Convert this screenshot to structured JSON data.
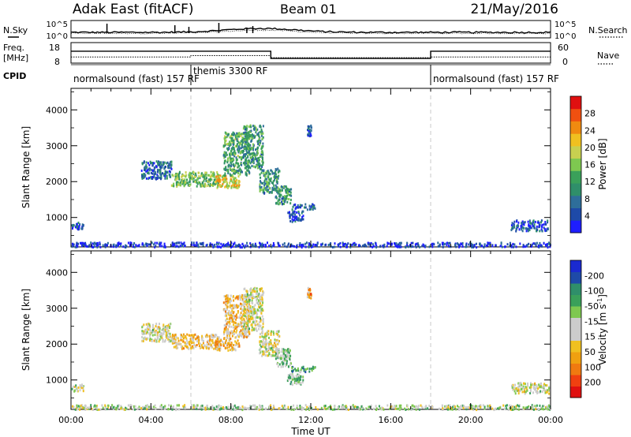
{
  "header": {
    "station": "Adak East (fitACF)",
    "beam": "Beam 01",
    "date": "21/May/2016"
  },
  "strip": {
    "nsky_label": "N.Sky",
    "nsearch_label": "N.Search",
    "freq_label": "Freq.",
    "freq_unit": "[MHz]",
    "nave_label": "Nave",
    "cpid_label": "CPID",
    "noise_ticks": [
      "10^5",
      "10^0"
    ],
    "freq_ticks": [
      "18",
      "8"
    ],
    "nave_ticks": [
      "60",
      "0"
    ]
  },
  "cpid_segments": [
    {
      "label": "normalsound (fast) 157 RF",
      "start_h": 0,
      "end_h": 6
    },
    {
      "label": "themis 3300 RF",
      "start_h": 6,
      "end_h": 18
    },
    {
      "label": "normalsound (fast) 157 RF",
      "start_h": 18,
      "end_h": 24
    }
  ],
  "chart_data": [
    {
      "type": "heatmap",
      "panel": "power",
      "ylabel": "Slant Range [km]",
      "xlabel": "Time UT",
      "x_ticks": [
        "00:00",
        "04:00",
        "08:00",
        "12:00",
        "16:00",
        "20:00",
        "00:00"
      ],
      "xlim_hours": [
        0,
        24
      ],
      "y_ticks": [
        1000,
        2000,
        3000,
        4000
      ],
      "ylim": [
        180,
        4600
      ],
      "colorbar": {
        "label": "Power [dB]",
        "ticks": [
          4,
          8,
          12,
          16,
          20,
          24,
          28
        ],
        "range": [
          0,
          30
        ],
        "colors": [
          "#1e1eff",
          "#1e4aa8",
          "#2e6e9a",
          "#2f8f6a",
          "#3aa05a",
          "#7ec850",
          "#c8d050",
          "#f0c020",
          "#f08a10",
          "#f05010",
          "#e01010"
        ]
      },
      "regions": [
        {
          "t_start": 0.0,
          "t_end": 0.6,
          "r_low": 700,
          "r_high": 900,
          "level": 0.15
        },
        {
          "t_start": 3.5,
          "t_end": 5.0,
          "r_low": 2100,
          "r_high": 2600,
          "level": 0.2
        },
        {
          "t_start": 5.0,
          "t_end": 7.4,
          "r_low": 1900,
          "r_high": 2300,
          "level": 0.45
        },
        {
          "t_start": 7.2,
          "t_end": 8.4,
          "r_low": 1850,
          "r_high": 2200,
          "level": 0.65
        },
        {
          "t_start": 7.6,
          "t_end": 8.9,
          "r_low": 2200,
          "r_high": 3400,
          "level": 0.4
        },
        {
          "t_start": 8.6,
          "t_end": 9.6,
          "r_low": 2400,
          "r_high": 3600,
          "level": 0.35
        },
        {
          "t_start": 9.4,
          "t_end": 10.4,
          "r_low": 1700,
          "r_high": 2400,
          "level": 0.35
        },
        {
          "t_start": 10.2,
          "t_end": 11.0,
          "r_low": 1400,
          "r_high": 1900,
          "level": 0.3
        },
        {
          "t_start": 11.0,
          "t_end": 12.2,
          "r_low": 1250,
          "r_high": 1400,
          "level": 0.2
        },
        {
          "t_start": 10.8,
          "t_end": 11.6,
          "r_low": 900,
          "r_high": 1200,
          "level": 0.15
        },
        {
          "t_start": 11.8,
          "t_end": 12.0,
          "r_low": 3300,
          "r_high": 3600,
          "level": 0.2
        },
        {
          "t_start": 22.0,
          "t_end": 23.9,
          "r_low": 650,
          "r_high": 950,
          "level": 0.15
        },
        {
          "t_start": 0.0,
          "t_end": 24.0,
          "r_low": 200,
          "r_high": 330,
          "level": 0.1
        }
      ]
    },
    {
      "type": "heatmap",
      "panel": "velocity",
      "ylabel": "Slant Range [km]",
      "xlabel": "Time UT",
      "x_ticks": [
        "00:00",
        "04:00",
        "08:00",
        "12:00",
        "16:00",
        "20:00",
        "00:00"
      ],
      "xlim_hours": [
        0,
        24
      ],
      "y_ticks": [
        1000,
        2000,
        3000,
        4000
      ],
      "ylim": [
        180,
        4600
      ],
      "colorbar": {
        "label": "Velocity [m s",
        "label_sup": "-1",
        "ticks": [
          "200",
          "100",
          "50",
          "15",
          "-15",
          "-50",
          "-100",
          "-200"
        ],
        "range": [
          -250,
          250
        ],
        "colors": [
          "#e01010",
          "#f04010",
          "#f07a10",
          "#f0a010",
          "#f0c020",
          "#cccccc",
          "#cccccc",
          "#7ec850",
          "#3aa05a",
          "#2f8f6a",
          "#1e4aa8",
          "#1a2ad0"
        ]
      },
      "regions": [
        {
          "t_start": 0.0,
          "t_end": 0.6,
          "r_low": 700,
          "r_high": 900,
          "level": 0.5
        },
        {
          "t_start": 3.5,
          "t_end": 5.0,
          "r_low": 2100,
          "r_high": 2600,
          "level": 0.5
        },
        {
          "t_start": 5.0,
          "t_end": 7.4,
          "r_low": 1900,
          "r_high": 2300,
          "level": 0.4
        },
        {
          "t_start": 7.2,
          "t_end": 8.4,
          "r_low": 1850,
          "r_high": 2200,
          "level": 0.35
        },
        {
          "t_start": 7.6,
          "t_end": 8.9,
          "r_low": 2200,
          "r_high": 3400,
          "level": 0.38
        },
        {
          "t_start": 8.6,
          "t_end": 9.6,
          "r_low": 2400,
          "r_high": 3600,
          "level": 0.5
        },
        {
          "t_start": 9.4,
          "t_end": 10.4,
          "r_low": 1700,
          "r_high": 2400,
          "level": 0.5
        },
        {
          "t_start": 10.2,
          "t_end": 11.0,
          "r_low": 1400,
          "r_high": 1900,
          "level": 0.6
        },
        {
          "t_start": 11.0,
          "t_end": 12.2,
          "r_low": 1250,
          "r_high": 1400,
          "level": 0.7
        },
        {
          "t_start": 10.8,
          "t_end": 11.6,
          "r_low": 900,
          "r_high": 1200,
          "level": 0.65
        },
        {
          "t_start": 11.8,
          "t_end": 12.0,
          "r_low": 3300,
          "r_high": 3600,
          "level": 0.3
        },
        {
          "t_start": 22.0,
          "t_end": 23.9,
          "r_low": 650,
          "r_high": 950,
          "level": 0.5
        },
        {
          "t_start": 0.0,
          "t_end": 24.0,
          "r_low": 200,
          "r_high": 330,
          "level": 0.55
        }
      ]
    }
  ]
}
